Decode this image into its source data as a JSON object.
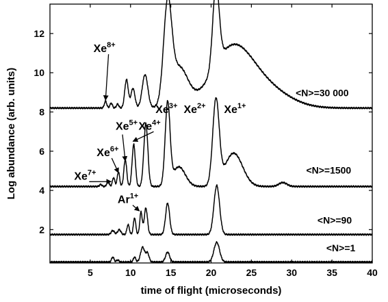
{
  "chart_data": {
    "type": "line",
    "xlabel": "time of flight (microseconds)",
    "ylabel": "Log abundance (arb. units)",
    "xlim": [
      0,
      40
    ],
    "ylim": [
      0.3,
      13.5
    ],
    "xticks": [
      5,
      10,
      15,
      20,
      25,
      30,
      35,
      40
    ],
    "yticks": [
      2,
      4,
      6,
      8,
      10,
      12
    ],
    "grid": false,
    "series": [
      {
        "name": "<N>=30 000",
        "baseline": 8.2,
        "peaks": [
          [
            6.9,
            0.35,
            0.15
          ],
          [
            7.6,
            0.25,
            0.15
          ],
          [
            8.4,
            0.2,
            0.15
          ],
          [
            9.5,
            1.45,
            0.22
          ],
          [
            10.3,
            1.0,
            0.25
          ],
          [
            11.8,
            1.7,
            0.35
          ],
          [
            14.6,
            4.75,
            0.5
          ],
          [
            16.0,
            2.0,
            1.1
          ],
          [
            20.6,
            4.05,
            0.4
          ],
          [
            22.5,
            2.8,
            2.5
          ],
          [
            26.5,
            1.0,
            3.0
          ]
        ]
      },
      {
        "name": "<N>=1500",
        "baseline": 4.2,
        "peaks": [
          [
            6.3,
            0.1,
            0.15
          ],
          [
            7.2,
            0.25,
            0.15
          ],
          [
            7.9,
            0.45,
            0.15
          ],
          [
            8.5,
            0.75,
            0.15
          ],
          [
            9.35,
            1.35,
            0.18
          ],
          [
            10.4,
            2.15,
            0.2
          ],
          [
            11.9,
            3.2,
            0.25
          ],
          [
            14.6,
            4.15,
            0.3
          ],
          [
            16.0,
            1.0,
            0.8
          ],
          [
            20.6,
            4.3,
            0.4
          ],
          [
            22.8,
            1.7,
            1.1
          ],
          [
            28.9,
            0.2,
            0.5
          ]
        ]
      },
      {
        "name": "<N>=90",
        "baseline": 1.75,
        "peaks": [
          [
            7.8,
            0.2,
            0.2
          ],
          [
            8.6,
            0.25,
            0.2
          ],
          [
            9.7,
            0.5,
            0.15
          ],
          [
            10.5,
            0.85,
            0.15
          ],
          [
            11.3,
            1.15,
            0.15
          ],
          [
            11.9,
            1.35,
            0.2
          ],
          [
            14.6,
            1.6,
            0.25
          ],
          [
            20.7,
            2.5,
            0.35
          ]
        ]
      },
      {
        "name": "<N>=1",
        "baseline": 0.35,
        "peaks": [
          [
            7.8,
            0.25,
            0.15
          ],
          [
            8.4,
            0.1,
            0.15
          ],
          [
            10.5,
            0.25,
            0.15
          ],
          [
            11.5,
            0.75,
            0.25
          ],
          [
            12.1,
            0.45,
            0.2
          ],
          [
            14.6,
            0.5,
            0.25
          ],
          [
            20.7,
            1.0,
            0.35
          ]
        ]
      }
    ],
    "annotations": [
      {
        "base": "Xe",
        "sup": "8+",
        "x": 5.4,
        "y": 11.05,
        "arrow_to": [
          6.9,
          8.6
        ]
      },
      {
        "base": "Xe",
        "sup": "3+",
        "x": 13.1,
        "y": 7.95
      },
      {
        "base": "Xe",
        "sup": "2+",
        "x": 16.6,
        "y": 7.95
      },
      {
        "base": "Xe",
        "sup": "1+",
        "x": 21.6,
        "y": 7.95
      },
      {
        "base": "Xe",
        "sup": "5+",
        "x": 8.15,
        "y": 7.1
      },
      {
        "base": "Xe",
        "sup": "4+",
        "x": 11.0,
        "y": 7.1,
        "arrow_to": [
          10.3,
          6.5
        ]
      },
      {
        "base": "Xe",
        "sup": "6+",
        "x": 5.8,
        "y": 5.75,
        "arrow_to": [
          8.5,
          4.9
        ]
      },
      {
        "base": "Xe",
        "sup": "7+",
        "x": 3.0,
        "y": 4.55,
        "arrow_to": [
          7.6,
          4.45
        ]
      },
      {
        "base": "Ar",
        "sup": "1+",
        "x": 8.4,
        "y": 3.35,
        "arrow_to": [
          11.1,
          2.95
        ]
      }
    ],
    "extra_arrows": [
      {
        "from": [
          9.0,
          6.85
        ],
        "to": [
          9.35,
          5.5
        ]
      }
    ],
    "curve_labels": [
      {
        "text": "<N>=30 000",
        "x": 30.5,
        "y": 8.8
      },
      {
        "text": "<N>=1500",
        "x": 31.8,
        "y": 4.85
      },
      {
        "text": "<N>=90",
        "x": 33.2,
        "y": 2.3
      },
      {
        "text": "<N>=1",
        "x": 34.3,
        "y": 0.9
      }
    ]
  }
}
